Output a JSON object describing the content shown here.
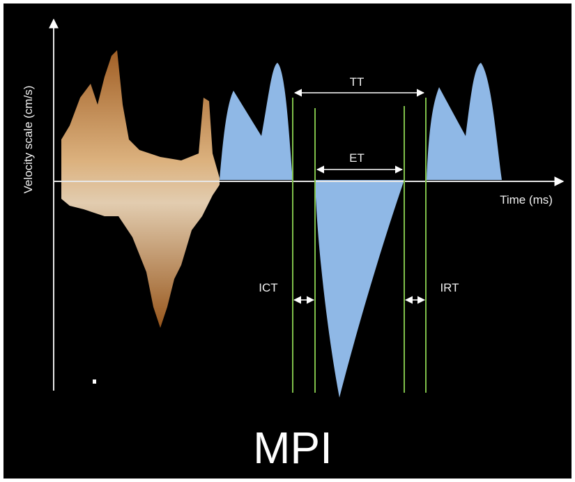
{
  "axes": {
    "y_label": "Velocity scale (cm/s)",
    "x_label": "Time (ms)"
  },
  "intervals": {
    "tt": "TT",
    "et": "ET",
    "ict": "ICT",
    "irt": "IRT"
  },
  "caption": "MPI"
}
